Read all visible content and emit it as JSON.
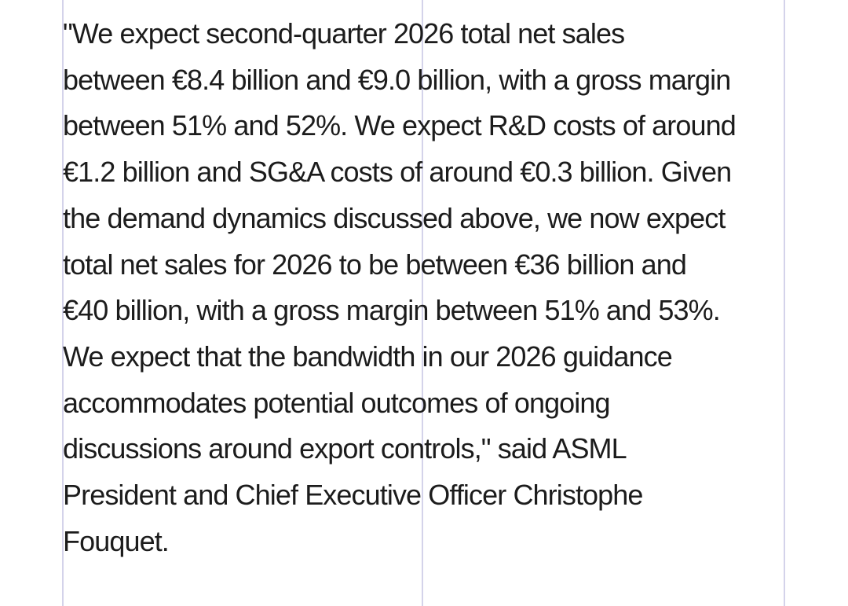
{
  "quote": {
    "lines": [
      "\"We expect second-quarter 2026 total net sales",
      "between €8.4 billion and €9.0 billion, with a gross margin",
      "between 51% and 52%. We expect R&D costs of around",
      "€1.2 billion and SG&A costs of around €0.3 billion. Given",
      "the demand dynamics discussed above, we now expect",
      "total net sales for 2026 to be between €36 billion and",
      "€40 billion, with a gross margin between 51% and 53%.",
      "We expect that the bandwidth in our 2026 guidance",
      "accommodates potential outcomes of ongoing",
      "discussions around export controls,\" said ASML",
      "President and Chief Executive Officer Christophe",
      "Fouquet."
    ]
  },
  "colors": {
    "text": "#1c1c1c",
    "guide_lines": "#d4d3ea",
    "background": "#ffffff"
  }
}
